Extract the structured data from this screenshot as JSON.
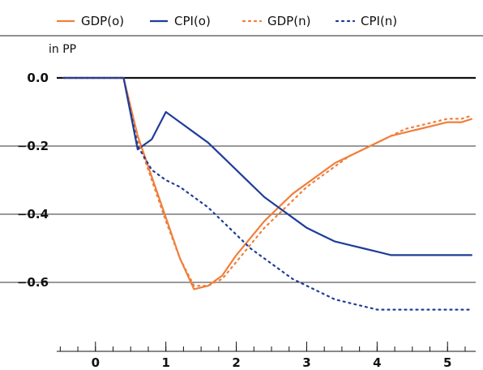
{
  "chart_data": {
    "type": "line",
    "title": "",
    "xlabel": "",
    "ylabel": "in PP",
    "xlim": [
      -0.55,
      5.4
    ],
    "ylim": [
      -0.78,
      0.02
    ],
    "x_ticks": [
      0,
      1,
      2,
      3,
      4,
      5
    ],
    "y_ticks": [
      0.0,
      -0.2,
      -0.4,
      -0.6
    ],
    "y_tick_labels": [
      "0.0",
      "−0.2",
      "−0.4",
      "−0.6"
    ],
    "grid": "horizontal",
    "legend_position": "top",
    "series": [
      {
        "name": "GDP(o)",
        "color": "#F07F3C",
        "style": "solid",
        "x": [
          -0.45,
          0.4,
          0.6,
          0.8,
          1.0,
          1.2,
          1.4,
          1.6,
          1.8,
          2.0,
          2.2,
          2.4,
          2.6,
          2.8,
          3.0,
          3.2,
          3.4,
          3.6,
          3.8,
          4.0,
          4.2,
          4.4,
          4.6,
          4.8,
          5.0,
          5.2,
          5.35
        ],
        "y": [
          0.0,
          0.0,
          -0.17,
          -0.29,
          -0.41,
          -0.53,
          -0.62,
          -0.61,
          -0.58,
          -0.52,
          -0.47,
          -0.42,
          -0.38,
          -0.34,
          -0.31,
          -0.28,
          -0.25,
          -0.23,
          -0.21,
          -0.19,
          -0.17,
          -0.16,
          -0.15,
          -0.14,
          -0.13,
          -0.13,
          -0.12
        ]
      },
      {
        "name": "CPI(o)",
        "color": "#1F3D99",
        "style": "solid",
        "x": [
          -0.45,
          0.4,
          0.6,
          0.8,
          1.0,
          1.2,
          1.4,
          1.6,
          1.8,
          2.0,
          2.2,
          2.4,
          2.6,
          2.8,
          3.0,
          3.2,
          3.4,
          3.6,
          3.8,
          4.0,
          4.2,
          4.4,
          4.6,
          4.8,
          5.0,
          5.2,
          5.35
        ],
        "y": [
          0.0,
          0.0,
          -0.21,
          -0.18,
          -0.1,
          -0.13,
          -0.16,
          -0.19,
          -0.23,
          -0.27,
          -0.31,
          -0.35,
          -0.38,
          -0.41,
          -0.44,
          -0.46,
          -0.48,
          -0.49,
          -0.5,
          -0.51,
          -0.52,
          -0.52,
          -0.52,
          -0.52,
          -0.52,
          -0.52,
          -0.52
        ]
      },
      {
        "name": "GDP(n)",
        "color": "#F07F3C",
        "style": "dotted",
        "x": [
          -0.45,
          0.4,
          0.6,
          0.8,
          1.0,
          1.2,
          1.4,
          1.6,
          1.8,
          2.0,
          2.2,
          2.4,
          2.6,
          2.8,
          3.0,
          3.2,
          3.4,
          3.6,
          3.8,
          4.0,
          4.2,
          4.4,
          4.6,
          4.8,
          5.0,
          5.2,
          5.35
        ],
        "y": [
          0.0,
          0.0,
          -0.18,
          -0.3,
          -0.42,
          -0.53,
          -0.61,
          -0.61,
          -0.59,
          -0.54,
          -0.49,
          -0.44,
          -0.4,
          -0.36,
          -0.32,
          -0.29,
          -0.26,
          -0.23,
          -0.21,
          -0.19,
          -0.17,
          -0.15,
          -0.14,
          -0.13,
          -0.12,
          -0.12,
          -0.11
        ]
      },
      {
        "name": "CPI(n)",
        "color": "#1F3D99",
        "style": "dotted",
        "x": [
          -0.45,
          0.4,
          0.6,
          0.8,
          1.0,
          1.2,
          1.4,
          1.6,
          1.8,
          2.0,
          2.2,
          2.4,
          2.6,
          2.8,
          3.0,
          3.2,
          3.4,
          3.6,
          3.8,
          4.0,
          4.2,
          4.4,
          4.6,
          4.8,
          5.0,
          5.2,
          5.35
        ],
        "y": [
          0.0,
          0.0,
          -0.2,
          -0.27,
          -0.3,
          -0.32,
          -0.35,
          -0.38,
          -0.42,
          -0.46,
          -0.5,
          -0.53,
          -0.56,
          -0.59,
          -0.61,
          -0.63,
          -0.65,
          -0.66,
          -0.67,
          -0.68,
          -0.68,
          -0.68,
          -0.68,
          -0.68,
          -0.68,
          -0.68,
          -0.68
        ]
      }
    ]
  }
}
